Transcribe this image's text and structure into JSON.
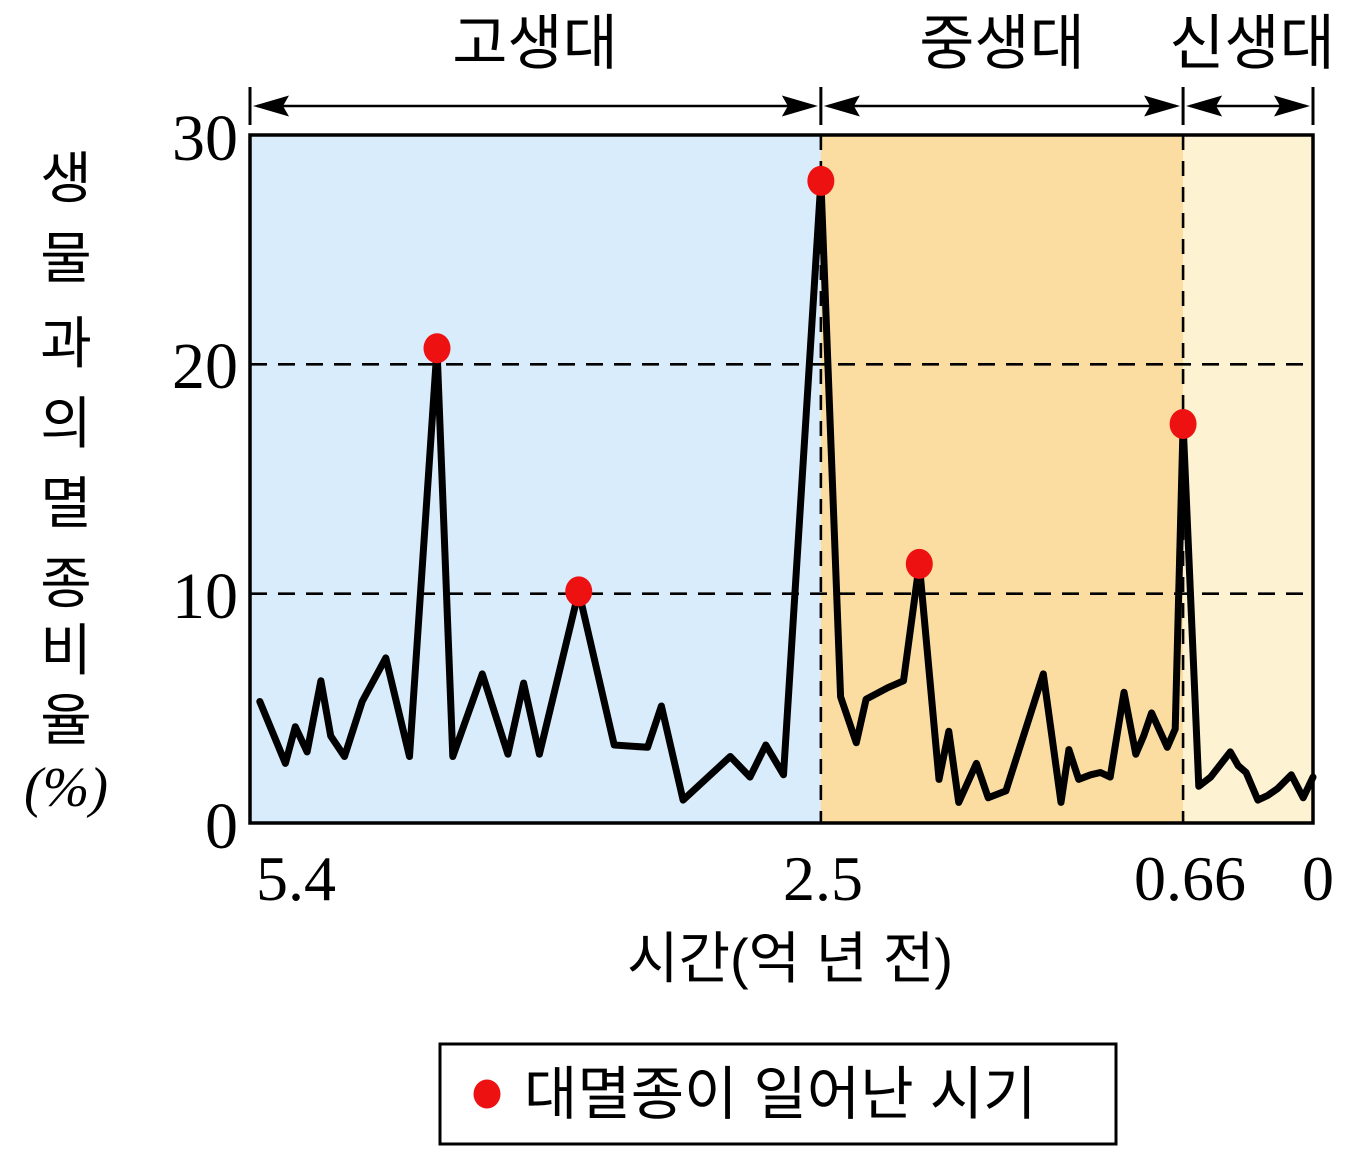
{
  "y_axis": {
    "label_chars": [
      "생",
      "물",
      "과",
      "의",
      "멸",
      "종",
      "비",
      "율"
    ],
    "unit_label": "(%)",
    "tick_labels": [
      "0",
      "10",
      "20",
      "30"
    ],
    "tick_values": [
      0,
      10,
      20,
      30
    ],
    "min": 0,
    "max": 30
  },
  "x_axis": {
    "title": "시간(억 년 전)",
    "tick_labels": [
      "5.4",
      "2.5",
      "0.66",
      "0"
    ],
    "tick_values": [
      5.4,
      2.5,
      0.66,
      0
    ],
    "min": 0,
    "max": 5.4,
    "direction": "reversed"
  },
  "eras": [
    {
      "name": "고생대",
      "from": 5.4,
      "to": 2.5,
      "color": "#d9ecfb"
    },
    {
      "name": "중생대",
      "from": 2.5,
      "to": 0.66,
      "color": "#fbdda2"
    },
    {
      "name": "신생대",
      "from": 0.66,
      "to": 0.0,
      "color": "#fdf2d2"
    }
  ],
  "legend": {
    "label": "대멸종이 일어난 시기",
    "marker_color": "#ee1111"
  },
  "style": {
    "line_color": "#000000",
    "dot_color": "#ee1111",
    "border_color": "#000000"
  },
  "chart_data": {
    "type": "line",
    "title": "",
    "xlabel": "시간(억 년 전)",
    "ylabel": "생물 과의 멸종 비율(%)",
    "xlim": [
      5.4,
      0
    ],
    "ylim": [
      0,
      30
    ],
    "grid_dashed_y": [
      10,
      20
    ],
    "grid_dashed_x": [
      2.5,
      0.66
    ],
    "legend_position": "bottom",
    "line_points": [
      [
        5.35,
        5.3
      ],
      [
        5.22,
        2.6
      ],
      [
        5.17,
        4.2
      ],
      [
        5.11,
        3.1
      ],
      [
        5.04,
        6.2
      ],
      [
        4.99,
        3.8
      ],
      [
        4.92,
        2.9
      ],
      [
        4.83,
        5.3
      ],
      [
        4.71,
        7.2
      ],
      [
        4.59,
        2.9
      ],
      [
        4.45,
        20.7
      ],
      [
        4.37,
        2.9
      ],
      [
        4.22,
        6.5
      ],
      [
        4.09,
        3.0
      ],
      [
        4.01,
        6.1
      ],
      [
        3.93,
        3.0
      ],
      [
        3.73,
        10.1
      ],
      [
        3.55,
        3.4
      ],
      [
        3.38,
        3.3
      ],
      [
        3.31,
        5.1
      ],
      [
        3.2,
        1.0
      ],
      [
        2.96,
        2.9
      ],
      [
        2.86,
        2.0
      ],
      [
        2.78,
        3.4
      ],
      [
        2.69,
        2.1
      ],
      [
        2.5,
        28.0
      ],
      [
        2.4,
        5.5
      ],
      [
        2.32,
        3.5
      ],
      [
        2.27,
        5.4
      ],
      [
        2.16,
        5.9
      ],
      [
        2.08,
        6.2
      ],
      [
        2.0,
        11.3
      ],
      [
        1.9,
        1.9
      ],
      [
        1.85,
        4.0
      ],
      [
        1.8,
        0.9
      ],
      [
        1.71,
        2.6
      ],
      [
        1.65,
        1.1
      ],
      [
        1.56,
        1.4
      ],
      [
        1.37,
        6.5
      ],
      [
        1.28,
        0.9
      ],
      [
        1.24,
        3.2
      ],
      [
        1.19,
        1.9
      ],
      [
        1.13,
        2.1
      ],
      [
        1.08,
        2.2
      ],
      [
        1.03,
        2.0
      ],
      [
        0.96,
        5.7
      ],
      [
        0.9,
        3.0
      ],
      [
        0.86,
        3.8
      ],
      [
        0.82,
        4.8
      ],
      [
        0.74,
        3.3
      ],
      [
        0.7,
        4.1
      ],
      [
        0.66,
        17.4
      ],
      [
        0.58,
        1.6
      ],
      [
        0.52,
        2.0
      ],
      [
        0.42,
        3.1
      ],
      [
        0.38,
        2.5
      ],
      [
        0.34,
        2.2
      ],
      [
        0.28,
        1.0
      ],
      [
        0.23,
        1.2
      ],
      [
        0.18,
        1.5
      ],
      [
        0.11,
        2.1
      ],
      [
        0.05,
        1.1
      ],
      [
        0.0,
        2.0
      ]
    ],
    "extinction_events": [
      {
        "time": 4.45,
        "rate": 20.7
      },
      {
        "time": 3.73,
        "rate": 10.1
      },
      {
        "time": 2.5,
        "rate": 28.0
      },
      {
        "time": 2.0,
        "rate": 11.3
      },
      {
        "time": 0.66,
        "rate": 17.4
      }
    ]
  }
}
